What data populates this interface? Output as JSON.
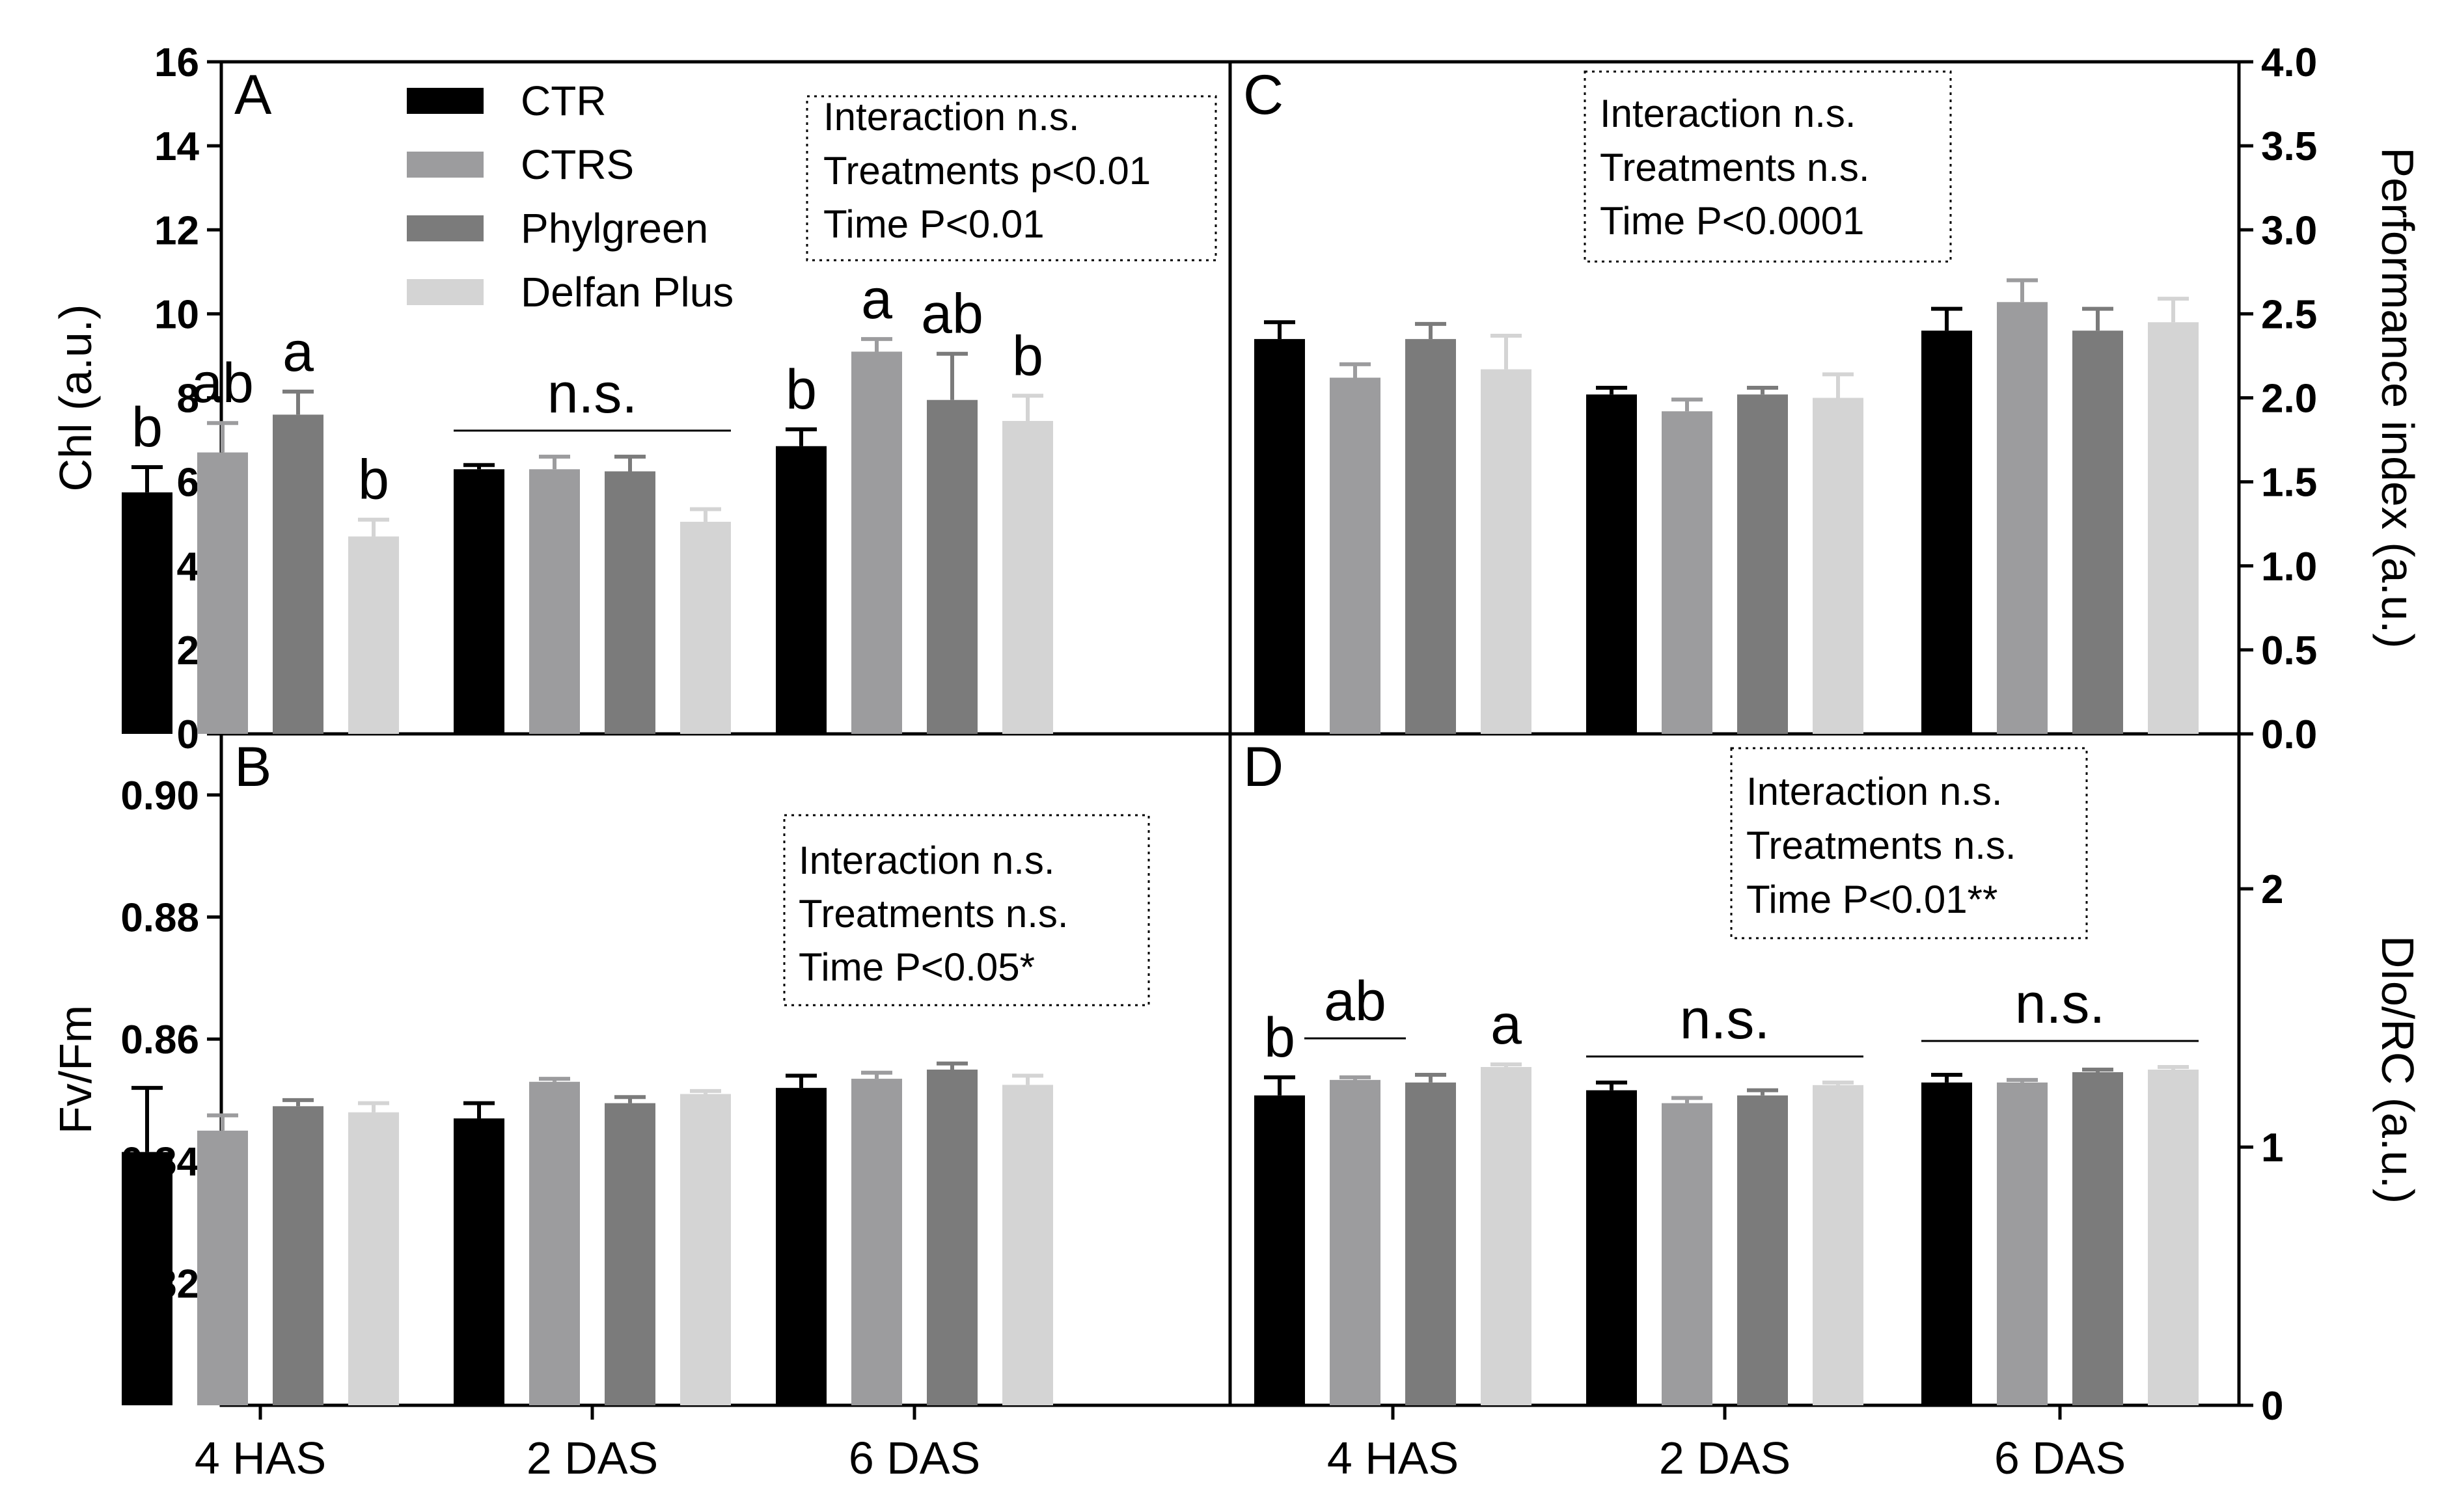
{
  "series_colors": [
    "#000000",
    "#9c9c9e",
    "#7b7b7b",
    "#d4d4d4"
  ],
  "chart_data": [
    {
      "id": "A",
      "type": "bar",
      "panel_label": "A",
      "categories": [
        "4 HAS",
        "2 DAS",
        "6 DAS"
      ],
      "ylabel": "Chl (a.u.)",
      "y_axis_side": "left",
      "ylim": [
        0,
        16
      ],
      "yticks": [
        "0",
        "2",
        "4",
        "6",
        "8",
        "10",
        "12",
        "14",
        "16"
      ],
      "series": [
        {
          "name": "CTR",
          "values": [
            5.75,
            6.3,
            6.85
          ],
          "errors": [
            0.6,
            0.1,
            0.4
          ]
        },
        {
          "name": "CTRS",
          "values": [
            6.7,
            6.3,
            9.1
          ],
          "errors": [
            0.7,
            0.3,
            0.3
          ]
        },
        {
          "name": "Phylgreen",
          "values": [
            7.6,
            6.25,
            7.95
          ],
          "errors": [
            0.55,
            0.35,
            1.1
          ]
        },
        {
          "name": "Delfan Plus",
          "values": [
            4.7,
            5.05,
            7.45
          ],
          "errors": [
            0.4,
            0.3,
            0.6
          ]
        }
      ],
      "letters": [
        [
          "b",
          "ab",
          "a",
          "b"
        ],
        [
          "",
          "",
          "",
          ""
        ],
        [
          "b",
          "a",
          "ab",
          "b"
        ]
      ],
      "group_labels": [
        "",
        "n.s.",
        ""
      ],
      "stats": [
        "Interaction n.s.",
        "Treatments p<0.01",
        "Time P<0.01"
      ]
    },
    {
      "id": "C",
      "type": "bar",
      "panel_label": "C",
      "categories": [
        "4 HAS",
        "2 DAS",
        "6 DAS"
      ],
      "ylabel": "Performance index (a.u.)",
      "y_axis_side": "right",
      "ylim": [
        0,
        4
      ],
      "yticks": [
        "0.0",
        "0.5",
        "1.0",
        "1.5",
        "2.0",
        "2.5",
        "3.0",
        "3.5",
        "4.0"
      ],
      "series": [
        {
          "name": "CTR",
          "values": [
            2.35,
            2.02,
            2.4
          ],
          "errors": [
            0.1,
            0.04,
            0.13
          ]
        },
        {
          "name": "CTRS",
          "values": [
            2.12,
            1.92,
            2.57
          ],
          "errors": [
            0.08,
            0.07,
            0.13
          ]
        },
        {
          "name": "Phylgreen",
          "values": [
            2.35,
            2.02,
            2.4
          ],
          "errors": [
            0.09,
            0.04,
            0.13
          ]
        },
        {
          "name": "Delfan Plus",
          "values": [
            2.17,
            2.0,
            2.45
          ],
          "errors": [
            0.2,
            0.14,
            0.14
          ]
        }
      ],
      "letters": [
        [
          "",
          "",
          "",
          ""
        ],
        [
          "",
          "",
          "",
          ""
        ],
        [
          "",
          "",
          "",
          ""
        ]
      ],
      "group_labels": [
        "",
        "",
        ""
      ],
      "stats": [
        "Interaction n.s.",
        "Treatments n.s.",
        "Time P<0.0001"
      ]
    },
    {
      "id": "B",
      "type": "bar",
      "panel_label": "B",
      "categories": [
        "4 HAS",
        "2 DAS",
        "6 DAS"
      ],
      "ylabel": "Fv/Fm",
      "y_axis_side": "left",
      "ylim": [
        0.8,
        0.91
      ],
      "yticks": [
        "0.82",
        "0.84",
        "0.86",
        "0.88",
        "0.90"
      ],
      "series": [
        {
          "name": "CTR",
          "values": [
            0.8415,
            0.847,
            0.852
          ],
          "errors": [
            0.0105,
            0.0025,
            0.002
          ]
        },
        {
          "name": "CTRS",
          "values": [
            0.845,
            0.853,
            0.8535
          ],
          "errors": [
            0.0025,
            0.0005,
            0.001
          ]
        },
        {
          "name": "Phylgreen",
          "values": [
            0.849,
            0.8495,
            0.855
          ],
          "errors": [
            0.001,
            0.001,
            0.001
          ]
        },
        {
          "name": "Delfan Plus",
          "values": [
            0.848,
            0.851,
            0.8525
          ],
          "errors": [
            0.0015,
            0.0005,
            0.0015
          ]
        }
      ],
      "letters": [
        [
          "",
          "",
          "",
          ""
        ],
        [
          "",
          "",
          "",
          ""
        ],
        [
          "",
          "",
          "",
          ""
        ]
      ],
      "group_labels": [
        "",
        "",
        ""
      ],
      "stats": [
        "Interaction n.s.",
        "Treatments n.s.",
        "Time P<0.05*"
      ]
    },
    {
      "id": "D",
      "type": "bar",
      "panel_label": "D",
      "categories": [
        "4 HAS",
        "2 DAS",
        "6 DAS"
      ],
      "ylabel": "DIo/RC (a.u.)",
      "y_axis_side": "right",
      "ylim": [
        0,
        2.6
      ],
      "yticks": [
        "0",
        "1",
        "2"
      ],
      "series": [
        {
          "name": "CTR",
          "values": [
            1.2,
            1.22,
            1.25
          ],
          "errors": [
            0.07,
            0.03,
            0.03
          ]
        },
        {
          "name": "CTRS",
          "values": [
            1.26,
            1.17,
            1.25
          ],
          "errors": [
            0.01,
            0.02,
            0.01
          ]
        },
        {
          "name": "Phylgreen",
          "values": [
            1.25,
            1.2,
            1.29
          ],
          "errors": [
            0.03,
            0.02,
            0.01
          ]
        },
        {
          "name": "Delfan Plus",
          "values": [
            1.31,
            1.24,
            1.3
          ],
          "errors": [
            0.01,
            0.01,
            0.01
          ]
        }
      ],
      "letters": [
        [
          "b",
          "",
          "",
          "a"
        ],
        [
          "",
          "",
          "",
          ""
        ],
        [
          "",
          "",
          "",
          ""
        ]
      ],
      "group_labels": [
        "ab",
        "n.s.",
        "n.s."
      ],
      "stats": [
        "Interaction n.s.",
        "Treatments n.s.",
        "Time P<0.01**"
      ]
    }
  ]
}
